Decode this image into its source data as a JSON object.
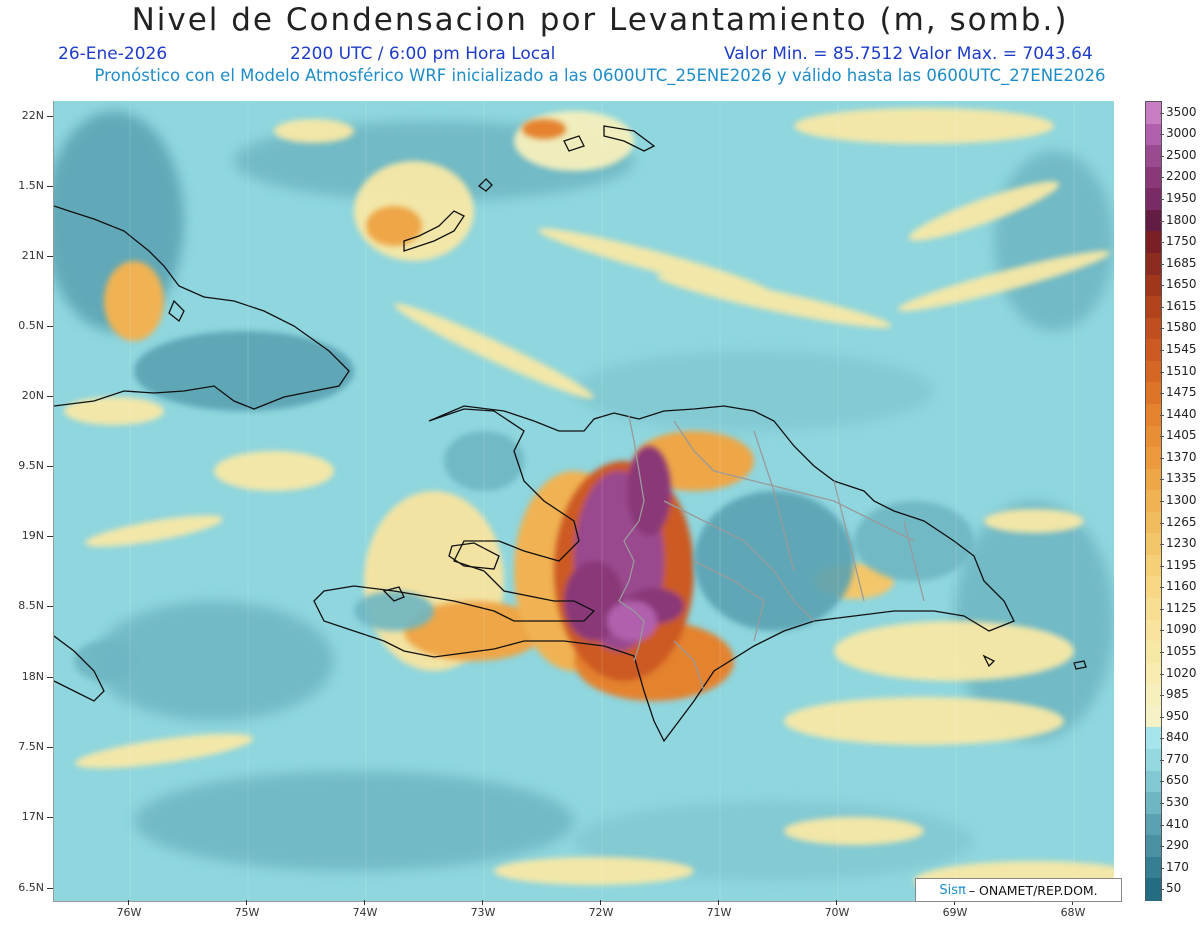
{
  "title": "Nivel de Condensacion por Levantamiento (m, somb.)",
  "header": {
    "date": "26-Ene-2026",
    "time": "2200 UTC / 6:00 pm Hora Local",
    "min_max": "Valor Min. = 85.7512  Valor Max. = 7043.64",
    "subtitle": "Pronóstico con el Modelo Atmosférico WRF inicializado a las 0600UTC_25ENE2026 y válido hasta las  0600UTC_27ENE2026"
  },
  "axes": {
    "y_labels": [
      "22N",
      "1.5N",
      "21N",
      "0.5N",
      "20N",
      "9.5N",
      "19N",
      "8.5N",
      "18N",
      "7.5N",
      "17N",
      "6.5N"
    ],
    "x_labels": [
      "76W",
      "75W",
      "74W",
      "73W",
      "72W",
      "71W",
      "70W",
      "69W",
      "68W"
    ]
  },
  "colorbar": {
    "labels": [
      "3500",
      "3000",
      "2500",
      "2200",
      "1950",
      "1800",
      "1750",
      "1685",
      "1650",
      "1615",
      "1580",
      "1545",
      "1510",
      "1475",
      "1440",
      "1405",
      "1370",
      "1335",
      "1300",
      "1265",
      "1230",
      "1195",
      "1160",
      "1125",
      "1090",
      "1055",
      "1020",
      "985",
      "950",
      "840",
      "770",
      "650",
      "530",
      "410",
      "290",
      "170",
      "50"
    ],
    "colors": [
      "#c77ec2",
      "#b060ad",
      "#9a4a8e",
      "#8a3878",
      "#7a2a64",
      "#631c44",
      "#7a1f24",
      "#8c2b1f",
      "#a0361c",
      "#b2421c",
      "#c04e1e",
      "#cc5a22",
      "#d66624",
      "#de7428",
      "#e4822e",
      "#e88e34",
      "#ec9a3c",
      "#eea646",
      "#f0b252",
      "#f2bc5e",
      "#f4c66a",
      "#f6d076",
      "#f8d884",
      "#f8de90",
      "#f8e49c",
      "#f8e8a6",
      "#f8ecb0",
      "#f6f0bc",
      "#f4f2c6",
      "#a8e4ec",
      "#94d8e0",
      "#82c8d2",
      "#6eb6c2",
      "#5aa2b2",
      "#4890a2",
      "#367e92",
      "#246c82"
    ]
  },
  "credit": {
    "brand": "Sisπ",
    "text": "– ONAMET/REP.DOM."
  }
}
